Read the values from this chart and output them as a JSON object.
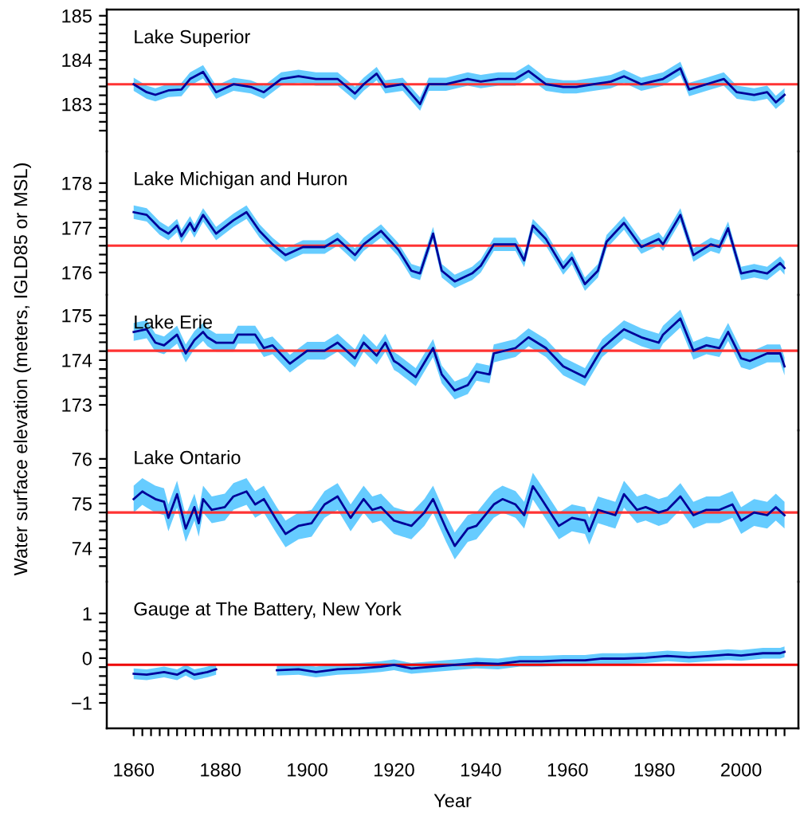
{
  "chart_data": [
    {
      "type": "line",
      "title": "Lake Superior",
      "ylabel": "Water surface elevation (meters, IGLD85 or MSL)",
      "xlim": [
        1853.8,
        2013.2
      ],
      "ylim": [
        181.93,
        185.14
      ],
      "tick_labels": "y",
      "yticks": [
        {
          "value": 182.4,
          "label": null
        },
        {
          "value": 182.6,
          "label": null
        },
        {
          "value": 182.8,
          "label": null
        },
        183,
        {
          "value": 183.2,
          "label": null
        },
        {
          "value": 183.4,
          "label": null
        },
        {
          "value": 183.6,
          "label": null
        },
        {
          "value": 183.8,
          "label": null
        },
        184,
        {
          "value": 184.2,
          "label": null
        },
        {
          "value": 184.4,
          "label": null
        },
        {
          "value": 184.6,
          "label": null
        },
        {
          "value": 184.8,
          "label": null
        },
        185
      ],
      "x": [
        1860,
        1863,
        1865,
        1868,
        1871,
        1873,
        1876,
        1879,
        1883,
        1887,
        1890,
        1894,
        1898,
        1902,
        1907,
        1911,
        1913,
        1916,
        1918,
        1922,
        1926,
        1928,
        1932,
        1937,
        1940,
        1944,
        1948,
        1951,
        1955,
        1959,
        1962,
        1966,
        1970,
        1973,
        1977,
        1982,
        1986,
        1988,
        1992,
        1996,
        1999,
        2003,
        2006,
        2008,
        2010
      ],
      "series": [
        {
          "color": "#000099",
          "lower": [
            183.3,
            183.12,
            183.06,
            183.16,
            183.18,
            183.42,
            183.58,
            183.12,
            183.3,
            183.24,
            183.12,
            183.42,
            183.48,
            183.42,
            183.42,
            183.09,
            183.3,
            183.54,
            183.24,
            183.3,
            182.85,
            183.3,
            183.3,
            183.42,
            183.36,
            183.42,
            183.42,
            183.6,
            183.3,
            183.24,
            183.24,
            183.3,
            183.36,
            183.48,
            183.3,
            183.42,
            183.66,
            183.18,
            183.3,
            183.42,
            183.12,
            183.06,
            183.12,
            182.89,
            183.06
          ],
          "upper": [
            183.6,
            183.42,
            183.36,
            183.46,
            183.48,
            183.72,
            183.88,
            183.42,
            183.6,
            183.54,
            183.42,
            183.72,
            183.78,
            183.72,
            183.72,
            183.39,
            183.6,
            183.84,
            183.54,
            183.6,
            183.15,
            183.6,
            183.6,
            183.72,
            183.66,
            183.72,
            183.72,
            183.9,
            183.6,
            183.54,
            183.54,
            183.6,
            183.66,
            183.78,
            183.6,
            183.72,
            183.96,
            183.48,
            183.6,
            183.72,
            183.42,
            183.36,
            183.42,
            183.19,
            183.36
          ],
          "values": [
            183.45,
            183.27,
            183.21,
            183.31,
            183.33,
            183.57,
            183.73,
            183.27,
            183.45,
            183.39,
            183.27,
            183.57,
            183.63,
            183.57,
            183.57,
            183.24,
            183.45,
            183.69,
            183.39,
            183.45,
            183.0,
            183.45,
            183.45,
            183.57,
            183.51,
            183.57,
            183.57,
            183.75,
            183.45,
            183.39,
            183.39,
            183.45,
            183.51,
            183.63,
            183.45,
            183.57,
            183.81,
            183.33,
            183.45,
            183.57,
            183.27,
            183.21,
            183.27,
            183.04,
            183.21
          ]
        }
      ],
      "ref_lines": [
        {
          "axis": "y",
          "value": 183.45,
          "color": "#ff3333"
        }
      ]
    },
    {
      "type": "line",
      "title": "Lake Michigan and Huron",
      "xlim": [
        1853.8,
        2013.2
      ],
      "ylim": [
        175.5,
        178.71
      ],
      "tick_labels": "y",
      "yticks": [
        176,
        {
          "value": 176.2,
          "label": null
        },
        {
          "value": 176.4,
          "label": null
        },
        {
          "value": 176.6,
          "label": null
        },
        {
          "value": 176.8,
          "label": null
        },
        177,
        {
          "value": 177.2,
          "label": null
        },
        {
          "value": 177.4,
          "label": null
        },
        {
          "value": 177.6,
          "label": null
        },
        {
          "value": 177.8,
          "label": null
        },
        178
      ],
      "x": [
        1860,
        1863,
        1866,
        1868,
        1870,
        1871,
        1873,
        1874,
        1876,
        1879,
        1883,
        1886,
        1889,
        1892,
        1895,
        1899,
        1904,
        1907,
        1911,
        1913,
        1917,
        1921,
        1924,
        1926,
        1929,
        1931,
        1934,
        1938,
        1940,
        1943,
        1948,
        1950,
        1952,
        1955,
        1959,
        1961,
        1964,
        1967,
        1969,
        1973,
        1977,
        1981,
        1982,
        1986,
        1989,
        1993,
        1995,
        1997,
        2000,
        2003,
        2006,
        2009,
        2010
      ],
      "series": [
        {
          "color": "#000099",
          "lower": [
            177.2,
            177.14,
            176.84,
            176.72,
            176.9,
            176.66,
            176.96,
            176.78,
            177.14,
            176.72,
            177.02,
            177.2,
            176.78,
            176.48,
            176.24,
            176.42,
            176.42,
            176.6,
            176.24,
            176.48,
            176.78,
            176.36,
            175.89,
            175.83,
            176.72,
            175.89,
            175.65,
            175.83,
            176.0,
            176.48,
            176.48,
            176.12,
            176.9,
            176.6,
            175.95,
            176.18,
            175.59,
            175.89,
            176.54,
            176.96,
            176.42,
            176.6,
            176.48,
            177.14,
            176.24,
            176.48,
            176.42,
            176.84,
            175.83,
            175.89,
            175.83,
            176.06,
            175.95
          ],
          "upper": [
            177.5,
            177.44,
            177.14,
            177.02,
            177.2,
            176.96,
            177.26,
            177.08,
            177.44,
            177.02,
            177.32,
            177.5,
            177.08,
            176.78,
            176.54,
            176.72,
            176.72,
            176.9,
            176.54,
            176.78,
            177.08,
            176.66,
            176.19,
            176.13,
            177.02,
            176.19,
            175.95,
            176.13,
            176.3,
            176.78,
            176.78,
            176.42,
            177.2,
            176.9,
            176.25,
            176.48,
            175.89,
            176.19,
            176.84,
            177.26,
            176.72,
            176.9,
            176.78,
            177.44,
            176.54,
            176.78,
            176.72,
            177.14,
            176.13,
            176.19,
            176.13,
            176.36,
            176.25
          ],
          "values": [
            177.35,
            177.29,
            176.99,
            176.87,
            177.05,
            176.81,
            177.11,
            176.93,
            177.29,
            176.87,
            177.17,
            177.35,
            176.93,
            176.63,
            176.39,
            176.57,
            176.57,
            176.75,
            176.39,
            176.63,
            176.93,
            176.51,
            176.04,
            175.98,
            176.87,
            176.04,
            175.8,
            175.98,
            176.15,
            176.63,
            176.63,
            176.27,
            177.05,
            176.75,
            176.1,
            176.33,
            175.74,
            176.04,
            176.69,
            177.11,
            176.57,
            176.75,
            176.63,
            177.29,
            176.39,
            176.63,
            176.57,
            176.99,
            175.98,
            176.04,
            175.98,
            176.21,
            176.1
          ]
        }
      ],
      "ref_lines": [
        {
          "axis": "y",
          "value": 176.6,
          "color": "#ff3333"
        }
      ]
    },
    {
      "type": "line",
      "title": "Lake Erie",
      "xlim": [
        1853.8,
        2013.2
      ],
      "ylim": [
        172.43,
        175.46
      ],
      "tick_labels": "y",
      "yticks": [
        173,
        {
          "value": 173.2,
          "label": null
        },
        {
          "value": 173.4,
          "label": null
        },
        {
          "value": 173.6,
          "label": null
        },
        {
          "value": 173.8,
          "label": null
        },
        174,
        {
          "value": 174.2,
          "label": null
        },
        {
          "value": 174.4,
          "label": null
        },
        {
          "value": 174.6,
          "label": null
        },
        {
          "value": 174.8,
          "label": null
        },
        175
      ],
      "x": [
        1860,
        1863,
        1865,
        1867,
        1870,
        1872,
        1874,
        1876,
        1877,
        1879,
        1883,
        1884,
        1888,
        1890,
        1892,
        1896,
        1900,
        1904,
        1907,
        1911,
        1913,
        1916,
        1918,
        1920,
        1921,
        1925,
        1929,
        1931,
        1934,
        1937,
        1939,
        1942,
        1943,
        1948,
        1951,
        1955,
        1959,
        1964,
        1968,
        1973,
        1977,
        1981,
        1982,
        1986,
        1989,
        1992,
        1995,
        1997,
        2000,
        2002,
        2006,
        2009,
        2010
      ],
      "series": [
        {
          "color": "#000099",
          "lower": [
            174.43,
            174.49,
            174.19,
            174.13,
            174.37,
            173.95,
            174.25,
            174.43,
            174.31,
            174.19,
            174.19,
            174.37,
            174.37,
            174.07,
            174.13,
            173.72,
            174.01,
            174.01,
            174.19,
            173.84,
            174.19,
            173.9,
            174.19,
            173.78,
            173.72,
            173.42,
            174.07,
            173.48,
            173.12,
            173.24,
            173.54,
            173.48,
            173.95,
            174.07,
            174.31,
            174.07,
            173.66,
            173.42,
            174.07,
            174.49,
            174.31,
            174.19,
            174.37,
            174.73,
            174.01,
            174.13,
            174.07,
            174.43,
            173.84,
            173.78,
            173.95,
            173.95,
            173.66
          ],
          "upper": [
            174.83,
            174.89,
            174.59,
            174.53,
            174.77,
            174.35,
            174.65,
            174.83,
            174.71,
            174.59,
            174.59,
            174.77,
            174.77,
            174.47,
            174.53,
            174.12,
            174.41,
            174.41,
            174.59,
            174.24,
            174.59,
            174.3,
            174.59,
            174.18,
            174.12,
            173.82,
            174.47,
            173.88,
            173.52,
            173.64,
            173.94,
            173.88,
            174.35,
            174.47,
            174.71,
            174.47,
            174.06,
            173.82,
            174.47,
            174.89,
            174.71,
            174.59,
            174.77,
            175.13,
            174.41,
            174.53,
            174.47,
            174.83,
            174.24,
            174.18,
            174.35,
            174.35,
            174.06
          ],
          "values": [
            174.63,
            174.69,
            174.39,
            174.33,
            174.57,
            174.15,
            174.45,
            174.63,
            174.51,
            174.39,
            174.39,
            174.57,
            174.57,
            174.27,
            174.33,
            173.92,
            174.21,
            174.21,
            174.39,
            174.04,
            174.39,
            174.1,
            174.39,
            173.98,
            173.92,
            173.62,
            174.27,
            173.68,
            173.32,
            173.44,
            173.74,
            173.68,
            174.15,
            174.27,
            174.51,
            174.27,
            173.86,
            173.62,
            174.27,
            174.69,
            174.51,
            174.39,
            174.57,
            174.93,
            174.21,
            174.33,
            174.27,
            174.63,
            174.04,
            173.98,
            174.15,
            174.15,
            173.86
          ]
        }
      ],
      "ref_lines": [
        {
          "axis": "y",
          "value": 174.21,
          "color": "#ff3333"
        }
      ]
    },
    {
      "type": "line",
      "title": "Lake Ontario",
      "xlim": [
        1853.8,
        2013.2
      ],
      "ylim": [
        73.25,
        76.64
      ],
      "tick_labels": "y",
      "yticks": [
        {
          "value": 73.6,
          "label": null
        },
        {
          "value": 73.8,
          "label": null
        },
        74,
        {
          "value": 74.2,
          "label": null
        },
        {
          "value": 74.4,
          "label": null
        },
        {
          "value": 74.6,
          "label": null
        },
        {
          "value": 74.8,
          "label": null
        },
        75,
        {
          "value": 75.2,
          "label": null
        },
        {
          "value": 75.4,
          "label": null
        },
        {
          "value": 75.6,
          "label": null
        },
        {
          "value": 75.8,
          "label": null
        },
        76
      ],
      "x": [
        1860,
        1862,
        1863,
        1865,
        1867,
        1868,
        1870,
        1872,
        1874,
        1875,
        1876,
        1878,
        1881,
        1883,
        1886,
        1888,
        1890,
        1893,
        1895,
        1898,
        1901,
        1904,
        1907,
        1910,
        1913,
        1915,
        1917,
        1920,
        1922,
        1924,
        1927,
        1929,
        1932,
        1934,
        1937,
        1939,
        1943,
        1945,
        1948,
        1950,
        1952,
        1954,
        1958,
        1961,
        1964,
        1965,
        1967,
        1971,
        1973,
        1976,
        1978,
        1981,
        1983,
        1986,
        1989,
        1992,
        1995,
        1998,
        2000,
        2003,
        2006,
        2008,
        2010
      ],
      "series": [
        {
          "color": "#000099",
          "lower": [
            74.8,
            74.97,
            74.91,
            74.8,
            74.74,
            74.38,
            74.91,
            74.14,
            74.62,
            74.26,
            74.8,
            74.56,
            74.62,
            74.86,
            74.97,
            74.68,
            74.8,
            74.32,
            74.02,
            74.2,
            74.26,
            74.68,
            74.86,
            74.38,
            74.8,
            74.56,
            74.62,
            74.32,
            74.26,
            74.2,
            74.5,
            74.8,
            74.14,
            73.75,
            74.14,
            74.2,
            74.68,
            74.8,
            74.68,
            74.44,
            75.09,
            74.8,
            74.2,
            74.38,
            74.32,
            74.08,
            74.56,
            74.44,
            74.91,
            74.56,
            74.62,
            74.5,
            74.56,
            74.86,
            74.44,
            74.56,
            74.56,
            74.68,
            74.32,
            74.5,
            74.44,
            74.62,
            74.44
          ],
          "upper": [
            75.4,
            75.57,
            75.51,
            75.4,
            75.34,
            74.98,
            75.51,
            74.74,
            75.22,
            74.86,
            75.4,
            75.16,
            75.22,
            75.46,
            75.57,
            75.28,
            75.4,
            74.92,
            74.62,
            74.8,
            74.86,
            75.28,
            75.46,
            74.98,
            75.4,
            75.16,
            75.22,
            74.92,
            74.86,
            74.8,
            75.1,
            75.4,
            74.74,
            74.35,
            74.74,
            74.8,
            75.28,
            75.4,
            75.28,
            75.04,
            75.69,
            75.4,
            74.8,
            74.98,
            74.92,
            74.68,
            75.16,
            75.04,
            75.51,
            75.16,
            75.22,
            75.1,
            75.16,
            75.46,
            75.04,
            75.16,
            75.16,
            75.28,
            74.92,
            75.1,
            75.04,
            75.22,
            75.04
          ],
          "values": [
            75.1,
            75.27,
            75.21,
            75.1,
            75.04,
            74.68,
            75.21,
            74.44,
            74.92,
            74.56,
            75.1,
            74.86,
            74.92,
            75.16,
            75.27,
            74.98,
            75.1,
            74.62,
            74.32,
            74.5,
            74.56,
            74.98,
            75.16,
            74.68,
            75.1,
            74.86,
            74.92,
            74.62,
            74.56,
            74.5,
            74.8,
            75.1,
            74.44,
            74.05,
            74.44,
            74.5,
            74.98,
            75.1,
            74.98,
            74.74,
            75.39,
            75.1,
            74.5,
            74.68,
            74.62,
            74.38,
            74.86,
            74.74,
            75.21,
            74.86,
            74.92,
            74.8,
            74.86,
            75.16,
            74.74,
            74.86,
            74.86,
            74.98,
            74.62,
            74.8,
            74.74,
            74.92,
            74.74
          ]
        }
      ],
      "ref_lines": [
        {
          "axis": "y",
          "value": 74.8,
          "color": "#ff3333"
        }
      ]
    },
    {
      "type": "line",
      "title": "Gauge at The Battery, New York",
      "xlabel": "Year",
      "xlim": [
        1853.8,
        2013.2
      ],
      "ylim": [
        -1.57,
        1.71
      ],
      "yticks": [
        {
          "value": -1,
          "label": "−1"
        },
        {
          "value": -0.8,
          "label": null
        },
        {
          "value": -0.6,
          "label": null
        },
        {
          "value": -0.4,
          "label": null
        },
        {
          "value": -0.2,
          "label": null
        },
        0,
        {
          "value": 0.2,
          "label": null
        },
        {
          "value": 0.4,
          "label": null
        },
        {
          "value": 0.6,
          "label": null
        },
        {
          "value": 0.8,
          "label": null
        },
        1
      ],
      "xticks": [
        1860,
        {
          "value": 1862,
          "label": null
        },
        {
          "value": 1864,
          "label": null
        },
        {
          "value": 1866,
          "label": null
        },
        {
          "value": 1868,
          "label": null
        },
        {
          "value": 1870,
          "label": null
        },
        {
          "value": 1872,
          "label": null
        },
        {
          "value": 1874,
          "label": null
        },
        {
          "value": 1876,
          "label": null
        },
        {
          "value": 1878,
          "label": null
        },
        1880,
        {
          "value": 1882,
          "label": null
        },
        {
          "value": 1884,
          "label": null
        },
        {
          "value": 1886,
          "label": null
        },
        {
          "value": 1888,
          "label": null
        },
        {
          "value": 1890,
          "label": null
        },
        {
          "value": 1892,
          "label": null
        },
        {
          "value": 1894,
          "label": null
        },
        {
          "value": 1896,
          "label": null
        },
        {
          "value": 1898,
          "label": null
        },
        1900,
        {
          "value": 1902,
          "label": null
        },
        {
          "value": 1904,
          "label": null
        },
        {
          "value": 1906,
          "label": null
        },
        {
          "value": 1908,
          "label": null
        },
        {
          "value": 1910,
          "label": null
        },
        {
          "value": 1912,
          "label": null
        },
        {
          "value": 1914,
          "label": null
        },
        {
          "value": 1916,
          "label": null
        },
        {
          "value": 1918,
          "label": null
        },
        1920,
        {
          "value": 1922,
          "label": null
        },
        {
          "value": 1924,
          "label": null
        },
        {
          "value": 1926,
          "label": null
        },
        {
          "value": 1928,
          "label": null
        },
        {
          "value": 1930,
          "label": null
        },
        {
          "value": 1932,
          "label": null
        },
        {
          "value": 1934,
          "label": null
        },
        {
          "value": 1936,
          "label": null
        },
        {
          "value": 1938,
          "label": null
        },
        1940,
        {
          "value": 1942,
          "label": null
        },
        {
          "value": 1944,
          "label": null
        },
        {
          "value": 1946,
          "label": null
        },
        {
          "value": 1948,
          "label": null
        },
        {
          "value": 1950,
          "label": null
        },
        {
          "value": 1952,
          "label": null
        },
        {
          "value": 1954,
          "label": null
        },
        {
          "value": 1956,
          "label": null
        },
        {
          "value": 1958,
          "label": null
        },
        1960,
        {
          "value": 1962,
          "label": null
        },
        {
          "value": 1964,
          "label": null
        },
        {
          "value": 1966,
          "label": null
        },
        {
          "value": 1968,
          "label": null
        },
        {
          "value": 1970,
          "label": null
        },
        {
          "value": 1972,
          "label": null
        },
        {
          "value": 1974,
          "label": null
        },
        {
          "value": 1976,
          "label": null
        },
        {
          "value": 1978,
          "label": null
        },
        1980,
        {
          "value": 1982,
          "label": null
        },
        {
          "value": 1984,
          "label": null
        },
        {
          "value": 1986,
          "label": null
        },
        {
          "value": 1988,
          "label": null
        },
        {
          "value": 1990,
          "label": null
        },
        {
          "value": 1992,
          "label": null
        },
        {
          "value": 1994,
          "label": null
        },
        {
          "value": 1996,
          "label": null
        },
        {
          "value": 1998,
          "label": null
        },
        2000,
        {
          "value": 2002,
          "label": null
        },
        {
          "value": 2004,
          "label": null
        },
        {
          "value": 2006,
          "label": null
        },
        {
          "value": 2008,
          "label": null
        },
        {
          "value": 2010,
          "label": null
        }
      ],
      "x": [
        1860,
        1863,
        1867,
        1870,
        1872,
        1874,
        1877,
        1879,
        1885,
        1893,
        1898,
        1902,
        1907,
        1912,
        1917,
        1920,
        1924,
        1929,
        1934,
        1939,
        1944,
        1949,
        1954,
        1959,
        1964,
        1968,
        1973,
        1978,
        1983,
        1988,
        1993,
        1997,
        2000,
        2005,
        2009,
        2010
      ],
      "series": [
        {
          "color": "#000099",
          "lower": [
            -0.47,
            -0.49,
            -0.43,
            -0.49,
            -0.39,
            -0.49,
            -0.43,
            -0.37,
            null,
            -0.39,
            -0.37,
            -0.43,
            -0.37,
            -0.35,
            -0.31,
            -0.27,
            -0.35,
            -0.31,
            -0.27,
            -0.23,
            -0.25,
            -0.19,
            -0.19,
            -0.17,
            -0.17,
            -0.13,
            -0.13,
            -0.11,
            -0.07,
            -0.1,
            -0.07,
            -0.04,
            -0.06,
            -0.01,
            -0.01,
            0.02
          ],
          "upper": [
            -0.23,
            -0.25,
            -0.19,
            -0.25,
            -0.15,
            -0.25,
            -0.19,
            -0.13,
            null,
            -0.15,
            -0.13,
            -0.19,
            -0.13,
            -0.11,
            -0.07,
            -0.03,
            -0.11,
            -0.07,
            -0.03,
            0.01,
            -0.01,
            0.05,
            0.05,
            0.07,
            0.07,
            0.11,
            0.11,
            0.13,
            0.17,
            0.14,
            0.17,
            0.2,
            0.18,
            0.23,
            0.23,
            0.26
          ],
          "values": [
            -0.35,
            -0.37,
            -0.31,
            -0.37,
            -0.27,
            -0.37,
            -0.31,
            -0.25,
            null,
            -0.27,
            -0.25,
            -0.31,
            -0.25,
            -0.23,
            -0.19,
            -0.15,
            -0.23,
            -0.19,
            -0.15,
            -0.11,
            -0.13,
            -0.07,
            -0.07,
            -0.05,
            -0.05,
            -0.01,
            -0.01,
            0.01,
            0.05,
            0.02,
            0.05,
            0.08,
            0.06,
            0.11,
            0.11,
            0.14
          ]
        }
      ],
      "ref_lines": [
        {
          "axis": "y",
          "value": -0.15,
          "color": "#ee0000"
        }
      ]
    }
  ]
}
